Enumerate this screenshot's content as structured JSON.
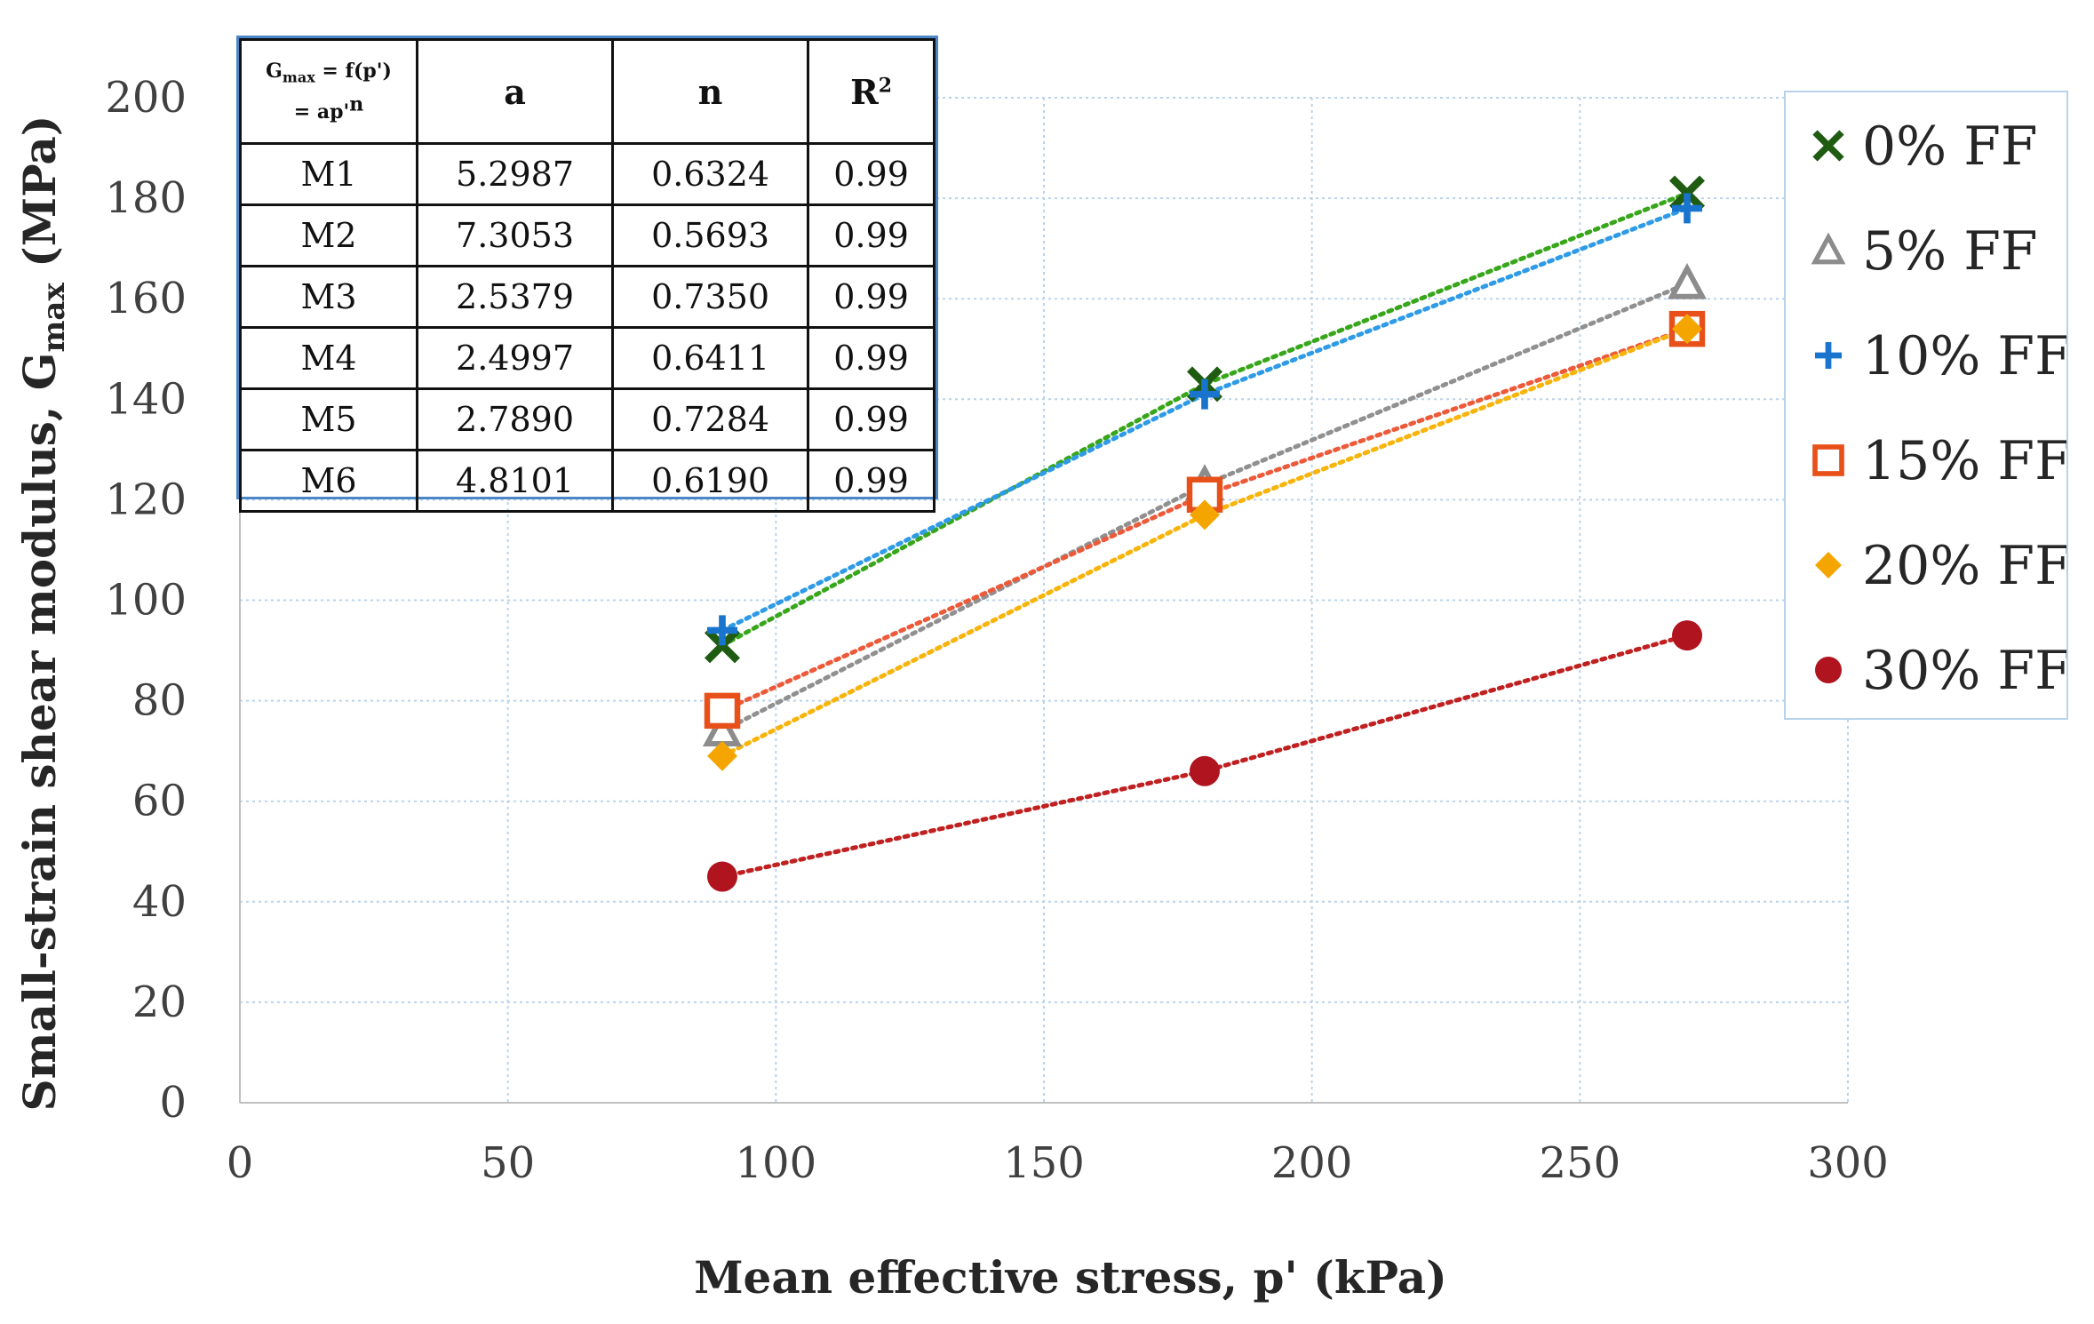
{
  "chart_data": {
    "type": "scatter",
    "xlabel": "Mean effective stress, p' (kPa)",
    "ylabel": "Small-strain shear modulus, G",
    "ylabel_sub": "max",
    "ylabel_unit": " (MPa)",
    "xlim": [
      0,
      300
    ],
    "ylim": [
      0,
      200
    ],
    "xticks": [
      0,
      50,
      100,
      150,
      200,
      250,
      300
    ],
    "yticks": [
      0,
      20,
      40,
      60,
      80,
      100,
      120,
      140,
      160,
      180,
      200
    ],
    "grid": true,
    "legend_position": "right",
    "trendlines": "dotted power fit per series",
    "series": [
      {
        "name": "0% FF",
        "marker": "x",
        "color": "#1f5c12",
        "line_color": "#38a61b",
        "x": [
          90,
          180,
          270
        ],
        "y": [
          91,
          143,
          181
        ]
      },
      {
        "name": "5% FF",
        "marker": "triangle",
        "color": "#8c8c8c",
        "line_color": "#909090",
        "x": [
          90,
          180,
          270
        ],
        "y": [
          74,
          123,
          163
        ]
      },
      {
        "name": "10% FF",
        "marker": "plus",
        "color": "#1874cd",
        "line_color": "#2f9be6",
        "x": [
          90,
          180,
          270
        ],
        "y": [
          94,
          141,
          178
        ]
      },
      {
        "name": "15% FF",
        "marker": "square",
        "color": "#e8501a",
        "line_color": "#ec5a3a",
        "x": [
          90,
          180,
          270
        ],
        "y": [
          78,
          121,
          154
        ]
      },
      {
        "name": "20% FF",
        "marker": "diamond",
        "color": "#f5a500",
        "line_color": "#f8b40a",
        "x": [
          90,
          180,
          270
        ],
        "y": [
          69,
          117,
          154
        ]
      },
      {
        "name": "30% FF",
        "marker": "circle",
        "color": "#b0141e",
        "line_color": "#c02020",
        "x": [
          90,
          180,
          270
        ],
        "y": [
          45,
          66,
          93
        ]
      }
    ]
  },
  "fit_table": {
    "header": {
      "eq_line1_a": "G",
      "eq_line1_sub": "max",
      "eq_line1_b": " = f(p')",
      "eq_line2_a": "= ap'",
      "eq_line2_sup": "n",
      "col_a": "a",
      "col_n": "n",
      "col_r_base": "R",
      "col_r_sup": "2"
    },
    "rows": [
      {
        "model": "M1",
        "a": "5.2987",
        "n": "0.6324",
        "r2": "0.99"
      },
      {
        "model": "M2",
        "a": "7.3053",
        "n": "0.5693",
        "r2": "0.99"
      },
      {
        "model": "M3",
        "a": "2.5379",
        "n": "0.7350",
        "r2": "0.99"
      },
      {
        "model": "M4",
        "a": "2.4997",
        "n": "0.6411",
        "r2": "0.99"
      },
      {
        "model": "M5",
        "a": "2.7890",
        "n": "0.7284",
        "r2": "0.99"
      },
      {
        "model": "M6",
        "a": "4.8101",
        "n": "0.6190",
        "r2": "0.99"
      }
    ]
  }
}
